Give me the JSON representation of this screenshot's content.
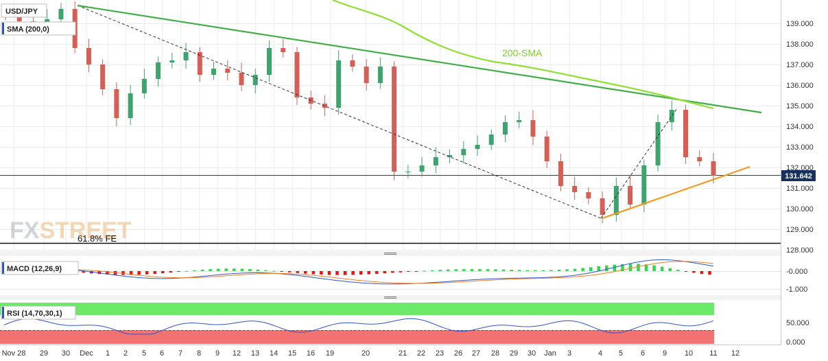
{
  "window": {
    "symbol": "USD/JPY",
    "sma_label": "SMA (200,0)"
  },
  "price_badge": "131.642",
  "watermark": {
    "fx": "FX",
    "street": "STREET"
  },
  "chart_data": [
    {
      "type": "candlestick",
      "title": "USD/JPY",
      "ylim": [
        127.7,
        140.0
      ],
      "yticks": [
        "139.000",
        "138.000",
        "137.000",
        "136.000",
        "135.000",
        "134.000",
        "133.000",
        "132.000",
        "131.000",
        "130.000",
        "129.000",
        "128.000"
      ],
      "ytick_values": [
        139,
        138,
        137,
        136,
        135,
        134,
        133,
        132,
        131,
        130,
        129,
        128
      ],
      "x_ticks": [
        "Nov 28",
        "29",
        "30",
        "Dec",
        "1",
        "2",
        "5",
        "6",
        "7",
        "8",
        "9",
        "12",
        "13",
        "14",
        "15",
        "16",
        "19",
        "20",
        "21",
        "22",
        "23",
        "26",
        "27",
        "28",
        "29",
        "30",
        "Jan",
        "3",
        "4",
        "5",
        "6",
        "9",
        "10",
        "11",
        "12"
      ],
      "current_price": 131.642,
      "annotations": {
        "sma_text": "200-SMA",
        "fe_text": "61.8% FE",
        "fe_level": 128.3
      },
      "close_path": [
        139.4,
        139.1,
        138.9,
        139.2,
        139.7,
        137.8,
        137.0,
        135.8,
        134.4,
        135.6,
        136.3,
        137.1,
        137.2,
        137.6,
        136.5,
        136.8,
        136.6,
        136.0,
        136.5,
        137.8,
        137.6,
        135.4,
        135.1,
        134.9,
        137.2,
        136.9,
        136.1,
        136.9,
        131.8,
        131.8,
        132.1,
        132.5,
        132.6,
        132.9,
        133.1,
        133.6,
        134.2,
        134.3,
        133.5,
        132.3,
        131.1,
        130.8,
        130.5,
        129.7,
        131.1,
        130.2,
        132.1,
        134.2,
        134.8,
        132.5,
        132.3,
        131.6
      ]
    },
    {
      "type": "line",
      "title": "MACD (12,26,9)",
      "yticks": [
        "-0.000",
        "-1.000"
      ],
      "ytick_values": [
        0,
        -1
      ]
    },
    {
      "type": "line",
      "title": "RSI (14,70,30,1)",
      "yticks": [
        "50.000",
        "0.000"
      ],
      "ytick_values": [
        50,
        0
      ],
      "levels": [
        70,
        30
      ]
    }
  ],
  "colors": {
    "up": "#3da46e",
    "down": "#d55f55",
    "trend_down": "#3fae48",
    "sma": "#8ee030",
    "support": "#f29b22",
    "macd_line": "#2e54c9",
    "signal": "#ef7d24",
    "hist_pos": "#33d64c",
    "hist_neg": "#ee1111",
    "rsi_line": "#2e54c9",
    "rsi_overbought_band": "#6ee86b",
    "rsi_oversold_band": "#f27272"
  }
}
